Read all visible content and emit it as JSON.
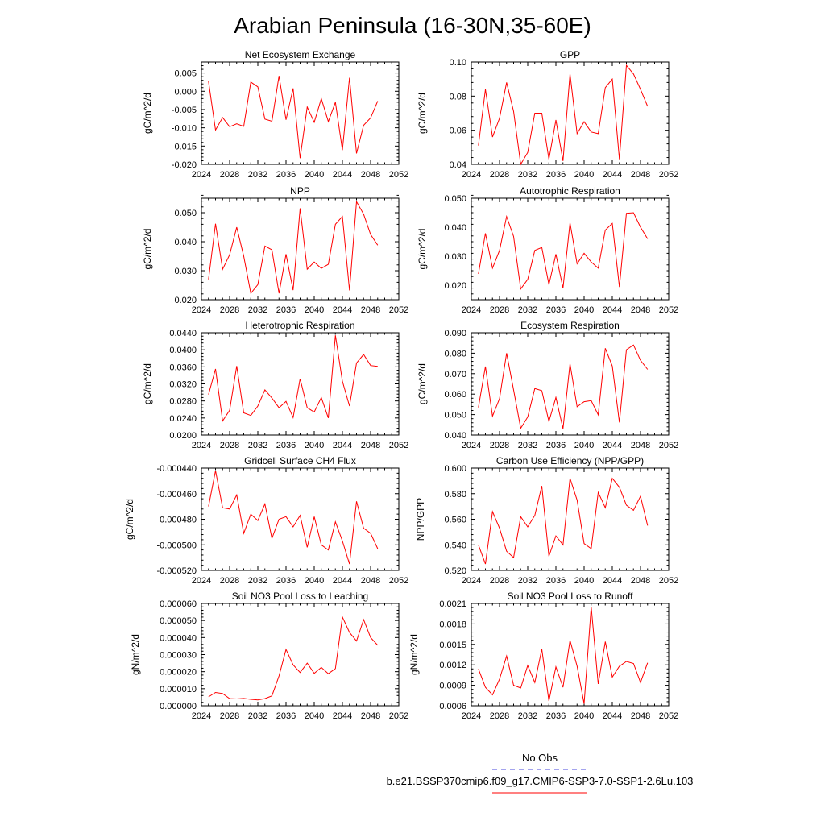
{
  "title": "Arabian Peninsula (16-30N,35-60E)",
  "legend": {
    "obs_label": "No Obs",
    "obs_color": "#4a4adc",
    "model_label": "b.e21.BSSP370cmip6.f09_g17.CMIP6-SSP3-7.0-SSP1-2.6Lu.103",
    "model_color": "#ff0000"
  },
  "chart_data": [
    {
      "type": "line",
      "title": "Net Ecosystem Exchange",
      "ylabel": "gC/m^2/d",
      "xlim": [
        2024,
        2052
      ],
      "ylim": [
        -0.02,
        0.008
      ],
      "xticks": [
        "2024",
        "2028",
        "2032",
        "2036",
        "2040",
        "2044",
        "2048",
        "2052"
      ],
      "yticks": [
        "0.005",
        "0.000",
        "-0.005",
        "-0.010",
        "-0.015",
        "-0.020"
      ],
      "series": [
        {
          "x": [
            2025,
            2026,
            2027,
            2028,
            2029,
            2030,
            2031,
            2032,
            2033,
            2034,
            2035,
            2036,
            2037,
            2038,
            2039,
            2040,
            2041,
            2042,
            2043,
            2044,
            2045,
            2046,
            2047,
            2048,
            2049
          ],
          "values": [
            0.0027,
            -0.0106,
            -0.0072,
            -0.0097,
            -0.0089,
            -0.0096,
            0.0025,
            0.0012,
            -0.0076,
            -0.0082,
            0.0042,
            -0.0078,
            0.0008,
            -0.0183,
            -0.0043,
            -0.0085,
            -0.002,
            -0.0083,
            -0.003,
            -0.0161,
            0.0037,
            -0.017,
            -0.0093,
            -0.0073,
            -0.0027
          ]
        }
      ]
    },
    {
      "type": "line",
      "title": "GPP",
      "ylabel": "gC/m^2/d",
      "xlim": [
        2024,
        2052
      ],
      "ylim": [
        0.04,
        0.1
      ],
      "xticks": [
        "2024",
        "2028",
        "2032",
        "2036",
        "2040",
        "2044",
        "2048",
        "2052"
      ],
      "yticks": [
        "0.10",
        "0.08",
        "0.06",
        "0.04"
      ],
      "series": [
        {
          "x": [
            2025,
            2026,
            2027,
            2028,
            2029,
            2030,
            2031,
            2032,
            2033,
            2034,
            2035,
            2036,
            2037,
            2038,
            2039,
            2040,
            2041,
            2042,
            2043,
            2044,
            2045,
            2046,
            2047,
            2048,
            2049
          ],
          "values": [
            0.051,
            0.084,
            0.056,
            0.067,
            0.088,
            0.071,
            0.04,
            0.047,
            0.07,
            0.07,
            0.043,
            0.066,
            0.042,
            0.093,
            0.058,
            0.065,
            0.059,
            0.058,
            0.085,
            0.09,
            0.043,
            0.098,
            0.093,
            0.084,
            0.074
          ]
        }
      ]
    },
    {
      "type": "line",
      "title": "NPP",
      "ylabel": "gC/m^2/d",
      "xlim": [
        2024,
        2052
      ],
      "ylim": [
        0.02,
        0.055
      ],
      "xticks": [
        "2024",
        "2028",
        "2032",
        "2036",
        "2040",
        "2044",
        "2048",
        "2052"
      ],
      "yticks": [
        "0.050",
        "0.040",
        "0.030",
        "0.020"
      ],
      "series": [
        {
          "x": [
            2025,
            2026,
            2027,
            2028,
            2029,
            2030,
            2031,
            2032,
            2033,
            2034,
            2035,
            2036,
            2037,
            2038,
            2039,
            2040,
            2041,
            2042,
            2043,
            2044,
            2045,
            2046,
            2047,
            2048,
            2049
          ],
          "values": [
            0.027,
            0.0462,
            0.0305,
            0.0355,
            0.045,
            0.035,
            0.0222,
            0.0252,
            0.0385,
            0.0372,
            0.0222,
            0.0357,
            0.0233,
            0.0515,
            0.0305,
            0.033,
            0.0308,
            0.0322,
            0.046,
            0.0487,
            0.0232,
            0.0538,
            0.0495,
            0.0425,
            0.0388
          ]
        }
      ]
    },
    {
      "type": "line",
      "title": "Autotrophic Respiration",
      "ylabel": "gC/m^2/d",
      "xlim": [
        2024,
        2052
      ],
      "ylim": [
        0.015,
        0.05
      ],
      "xticks": [
        "2024",
        "2028",
        "2032",
        "2036",
        "2040",
        "2044",
        "2048",
        "2052"
      ],
      "yticks": [
        "0.050",
        "0.040",
        "0.030",
        "0.020"
      ],
      "series": [
        {
          "x": [
            2025,
            2026,
            2027,
            2028,
            2029,
            2030,
            2031,
            2032,
            2033,
            2034,
            2035,
            2036,
            2037,
            2038,
            2039,
            2040,
            2041,
            2042,
            2043,
            2044,
            2045,
            2046,
            2047,
            2048,
            2049
          ],
          "values": [
            0.0239,
            0.0379,
            0.0259,
            0.032,
            0.0437,
            0.0368,
            0.0187,
            0.022,
            0.032,
            0.033,
            0.0202,
            0.0307,
            0.019,
            0.0415,
            0.0274,
            0.031,
            0.028,
            0.0259,
            0.039,
            0.0413,
            0.0194,
            0.0448,
            0.045,
            0.04,
            0.036
          ]
        }
      ]
    },
    {
      "type": "line",
      "title": "Heterotrophic Respiration",
      "ylabel": "gC/m^2/d",
      "xlim": [
        2024,
        2052
      ],
      "ylim": [
        0.02,
        0.044
      ],
      "xticks": [
        "2024",
        "2028",
        "2032",
        "2036",
        "2040",
        "2044",
        "2048",
        "2052"
      ],
      "yticks": [
        "0.0440",
        "0.0400",
        "0.0360",
        "0.0320",
        "0.0280",
        "0.0240",
        "0.0200"
      ],
      "series": [
        {
          "x": [
            2025,
            2026,
            2027,
            2028,
            2029,
            2030,
            2031,
            2032,
            2033,
            2034,
            2035,
            2036,
            2037,
            2038,
            2039,
            2040,
            2041,
            2042,
            2043,
            2044,
            2045,
            2046,
            2047,
            2048,
            2049
          ],
          "values": [
            0.0295,
            0.0355,
            0.0233,
            0.0258,
            0.0362,
            0.0252,
            0.0246,
            0.0268,
            0.0306,
            0.0287,
            0.0264,
            0.0279,
            0.0241,
            0.0332,
            0.0264,
            0.0254,
            0.0288,
            0.024,
            0.0434,
            0.0326,
            0.0268,
            0.0369,
            0.0389,
            0.0363,
            0.0361
          ]
        }
      ]
    },
    {
      "type": "line",
      "title": "Ecosystem Respiration",
      "ylabel": "gC/m^2/d",
      "xlim": [
        2024,
        2052
      ],
      "ylim": [
        0.04,
        0.09
      ],
      "xticks": [
        "2024",
        "2028",
        "2032",
        "2036",
        "2040",
        "2044",
        "2048",
        "2052"
      ],
      "yticks": [
        "0.090",
        "0.080",
        "0.070",
        "0.060",
        "0.050",
        "0.040"
      ],
      "series": [
        {
          "x": [
            2025,
            2026,
            2027,
            2028,
            2029,
            2030,
            2031,
            2032,
            2033,
            2034,
            2035,
            2036,
            2037,
            2038,
            2039,
            2040,
            2041,
            2042,
            2043,
            2044,
            2045,
            2046,
            2047,
            2048,
            2049
          ],
          "values": [
            0.0535,
            0.0735,
            0.0492,
            0.0578,
            0.08,
            0.062,
            0.0433,
            0.0488,
            0.0627,
            0.0617,
            0.0466,
            0.0584,
            0.0431,
            0.0748,
            0.0538,
            0.0563,
            0.0568,
            0.0499,
            0.0824,
            0.0737,
            0.0462,
            0.0817,
            0.084,
            0.0765,
            0.0721
          ]
        }
      ]
    },
    {
      "type": "line",
      "title": "Gridcell Surface CH4 Flux",
      "ylabel": "gC/m^2/d",
      "xlim": [
        2024,
        2052
      ],
      "ylim": [
        -0.00052,
        -0.00044
      ],
      "xticks": [
        "2024",
        "2028",
        "2032",
        "2036",
        "2040",
        "2044",
        "2048",
        "2052"
      ],
      "yticks": [
        "-0.000440",
        "-0.000460",
        "-0.000480",
        "-0.000500",
        "-0.000520"
      ],
      "series": [
        {
          "x": [
            2025,
            2026,
            2027,
            2028,
            2029,
            2030,
            2031,
            2032,
            2033,
            2034,
            2035,
            2036,
            2037,
            2038,
            2039,
            2040,
            2041,
            2042,
            2043,
            2044,
            2045,
            2046,
            2047,
            2048,
            2049
          ],
          "values": [
            -0.00047,
            -0.000442,
            -0.000471,
            -0.000472,
            -0.000461,
            -0.000491,
            -0.000476,
            -0.000481,
            -0.000468,
            -0.000495,
            -0.00048,
            -0.000478,
            -0.000486,
            -0.000477,
            -0.000502,
            -0.000478,
            -0.0005,
            -0.000504,
            -0.000482,
            -0.000497,
            -0.000515,
            -0.000466,
            -0.000487,
            -0.000491,
            -0.000503
          ]
        }
      ]
    },
    {
      "type": "line",
      "title": "Carbon Use Efficiency (NPP/GPP)",
      "ylabel": "NPP/GPP",
      "xlim": [
        2024,
        2052
      ],
      "ylim": [
        0.52,
        0.6
      ],
      "xticks": [
        "2024",
        "2028",
        "2032",
        "2036",
        "2040",
        "2044",
        "2048",
        "2052"
      ],
      "yticks": [
        "0.600",
        "0.580",
        "0.560",
        "0.540",
        "0.520"
      ],
      "series": [
        {
          "x": [
            2025,
            2026,
            2027,
            2028,
            2029,
            2030,
            2031,
            2032,
            2033,
            2034,
            2035,
            2036,
            2037,
            2038,
            2039,
            2040,
            2041,
            2042,
            2043,
            2044,
            2045,
            2046,
            2047,
            2048,
            2049
          ],
          "values": [
            0.54,
            0.525,
            0.566,
            0.553,
            0.535,
            0.53,
            0.562,
            0.554,
            0.563,
            0.586,
            0.531,
            0.547,
            0.54,
            0.592,
            0.575,
            0.541,
            0.537,
            0.581,
            0.569,
            0.592,
            0.585,
            0.571,
            0.567,
            0.578,
            0.555
          ]
        }
      ]
    },
    {
      "type": "line",
      "title": "Soil NO3 Pool Loss to Leaching",
      "ylabel": "gN/m^2/d",
      "xlim": [
        2024,
        2052
      ],
      "ylim": [
        0,
        6e-05
      ],
      "xticks": [
        "2024",
        "2028",
        "2032",
        "2036",
        "2040",
        "2044",
        "2048",
        "2052"
      ],
      "yticks": [
        "0.000060",
        "0.000050",
        "0.000040",
        "0.000030",
        "0.000020",
        "0.000010",
        "0.000000"
      ],
      "series": [
        {
          "x": [
            2025,
            2026,
            2027,
            2028,
            2029,
            2030,
            2031,
            2032,
            2033,
            2034,
            2035,
            2036,
            2037,
            2038,
            2039,
            2040,
            2041,
            2042,
            2043,
            2044,
            2045,
            2046,
            2047,
            2048,
            2049
          ],
          "values": [
            5.2e-06,
            7.8e-06,
            7.2e-06,
            4.2e-06,
            4e-06,
            4.3e-06,
            3.8e-06,
            3.4e-06,
            4.2e-06,
            5.8e-06,
            1.75e-05,
            3.3e-05,
            2.4e-05,
            1.95e-05,
            2.5e-05,
            1.9e-05,
            2.25e-05,
            1.88e-05,
            2.18e-05,
            5.2e-05,
            4.3e-05,
            3.8e-05,
            5.05e-05,
            4e-05,
            3.55e-05
          ]
        }
      ]
    },
    {
      "type": "line",
      "title": "Soil NO3 Pool Loss to Runoff",
      "ylabel": "gN/m^2/d",
      "xlim": [
        2024,
        2052
      ],
      "ylim": [
        0.0006,
        0.0021
      ],
      "xticks": [
        "2024",
        "2028",
        "2032",
        "2036",
        "2040",
        "2044",
        "2048",
        "2052"
      ],
      "yticks": [
        "0.0021",
        "0.0018",
        "0.0015",
        "0.0012",
        "0.0009",
        "0.0006"
      ],
      "series": [
        {
          "x": [
            2025,
            2026,
            2027,
            2028,
            2029,
            2030,
            2031,
            2032,
            2033,
            2034,
            2035,
            2036,
            2037,
            2038,
            2039,
            2040,
            2041,
            2042,
            2043,
            2044,
            2045,
            2046,
            2047,
            2048,
            2049
          ],
          "values": [
            0.00114,
            0.00087,
            0.00076,
            0.00099,
            0.00133,
            0.0009,
            0.00086,
            0.00119,
            0.00094,
            0.00143,
            0.00067,
            0.00117,
            0.00087,
            0.00156,
            0.00118,
            0.00063,
            0.00205,
            0.00092,
            0.00154,
            0.00102,
            0.00118,
            0.00125,
            0.00122,
            0.00094,
            0.00123
          ]
        }
      ]
    }
  ]
}
